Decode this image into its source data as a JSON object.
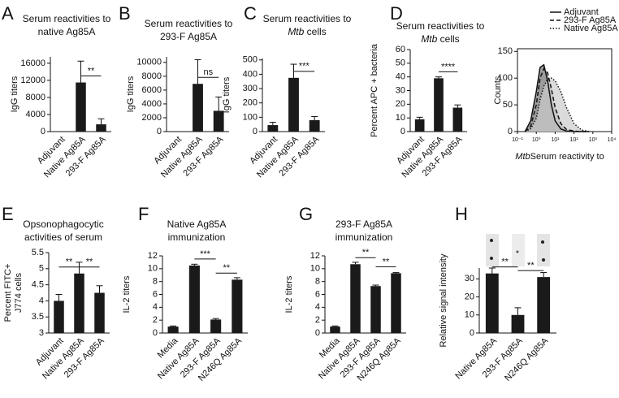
{
  "chart_data": [
    {
      "type": "bar",
      "panel": "A",
      "title": [
        "Serum reactivities to",
        "native Ag85A"
      ],
      "ylabel": "IgG titers",
      "categories": [
        "Adjuvant",
        "Native Ag85A",
        "293-F Ag85A"
      ],
      "values": [
        0,
        11500,
        1700
      ],
      "errors": [
        0,
        5000,
        1300
      ],
      "ylim": [
        0,
        17500
      ],
      "yticks": [
        0,
        4000,
        8000,
        12000,
        16000
      ],
      "color": "#1a1a1a",
      "significance": [
        {
          "between": [
            1,
            2
          ],
          "label": "**"
        }
      ]
    },
    {
      "type": "bar",
      "panel": "B",
      "title": [
        "Serum reactivities to",
        "293-F Ag85A"
      ],
      "ylabel": "IgG titers",
      "categories": [
        "Adjuvant",
        "Native Ag85A",
        "293-F Ag85A"
      ],
      "values": [
        0,
        6900,
        3000
      ],
      "errors": [
        0,
        3500,
        2000
      ],
      "ylim": [
        0,
        10800
      ],
      "yticks": [
        0,
        2000,
        4000,
        6000,
        8000,
        10000
      ],
      "color": "#1a1a1a",
      "significance": [
        {
          "between": [
            1,
            2
          ],
          "label": "ns"
        }
      ]
    },
    {
      "type": "bar",
      "panel": "C",
      "title": [
        "Serum reactivities to",
        {
          "italic": "Mtb",
          "text": " cells"
        }
      ],
      "ylabel": "IgG titers",
      "categories": [
        "Adjuvant",
        "Native Ag85A",
        "293-F Ag85A"
      ],
      "values": [
        45,
        375,
        80
      ],
      "errors": [
        20,
        95,
        25
      ],
      "ylim": [
        0,
        510
      ],
      "yticks": [
        0,
        100,
        200,
        300,
        400,
        500
      ],
      "color": "#1a1a1a",
      "significance": [
        {
          "between": [
            1,
            2
          ],
          "label": "***"
        }
      ]
    },
    {
      "type": "bar",
      "panel": "D",
      "title": [
        "Serum reactivities to",
        {
          "italic": "Mtb",
          "text": " cells"
        }
      ],
      "ylabel": "Percent APC + bacteria",
      "categories": [
        "Adjuvant",
        "Native Ag85A",
        "293-F Ag85A"
      ],
      "values": [
        9,
        39,
        17.5
      ],
      "errors": [
        1.5,
        1,
        2
      ],
      "ylim": [
        0,
        60
      ],
      "yticks": [
        0,
        10,
        20,
        30,
        40,
        50,
        60
      ],
      "color": "#1a1a1a",
      "significance": [
        {
          "between": [
            1,
            2
          ],
          "label": "****"
        }
      ]
    },
    {
      "type": "line",
      "ylabel": "Counts",
      "xlabel": {
        "text": "Serum reactivity to ",
        "italic": "Mtb"
      },
      "x": [
        -0.6,
        -0.3,
        0,
        0.2,
        0.4,
        0.6,
        0.8,
        1.0,
        1.3,
        1.6,
        2.0,
        2.4,
        2.8
      ],
      "ylim": [
        0,
        155
      ],
      "yticks": [
        0,
        50,
        100,
        150
      ],
      "xlim": [
        -1,
        4
      ],
      "xticks": [
        {
          "value": -1,
          "label": "10⁻¹"
        },
        {
          "value": 0,
          "label": "10⁰"
        },
        {
          "value": 1,
          "label": "10¹"
        },
        {
          "value": 2,
          "label": "10²"
        },
        {
          "value": 3,
          "label": "10³"
        },
        {
          "value": 4,
          "label": "10⁴"
        }
      ],
      "legend": "top-right",
      "series": [
        {
          "name": "Adjuvant",
          "color": "#111",
          "fill": "#777",
          "dash": "solid",
          "values": [
            0,
            20,
            75,
            120,
            125,
            95,
            50,
            20,
            5,
            1,
            0,
            0,
            0
          ]
        },
        {
          "name": "293-F Ag85A",
          "color": "#111",
          "fill": "#999",
          "dash": "dashed",
          "values": [
            0,
            10,
            50,
            100,
            118,
            110,
            80,
            45,
            15,
            4,
            1,
            0,
            0
          ]
        },
        {
          "name": "Native Ag85A",
          "color": "#111",
          "fill": "#ccc",
          "dash": "dotted",
          "values": [
            0,
            5,
            25,
            60,
            85,
            98,
            100,
            95,
            75,
            45,
            15,
            3,
            0
          ]
        }
      ]
    },
    {
      "type": "bar",
      "panel": "E",
      "title": [
        "Opsonophagocytic",
        "activities of serum"
      ],
      "ylabel": [
        "Percent FITC+",
        "J774 cells"
      ],
      "categories": [
        "Adjuvant",
        "Native Ag85A",
        "293-F Ag85A"
      ],
      "values": [
        4.0,
        4.85,
        4.25
      ],
      "errors": [
        0.2,
        0.35,
        0.22
      ],
      "ylim": [
        3,
        5.5
      ],
      "yticks": [
        3,
        3.5,
        4,
        4.5,
        5,
        5.5
      ],
      "color": "#1a1a1a",
      "significance": [
        {
          "between": [
            0,
            1
          ],
          "label": "**"
        },
        {
          "between": [
            1,
            2
          ],
          "label": "**"
        }
      ]
    },
    {
      "type": "bar",
      "panel": "F",
      "title": [
        "Native Ag85A",
        "immunization"
      ],
      "ylabel": "IL-2 titers",
      "categories": [
        "Media",
        "Native Ag85A",
        "293-F Ag85A",
        "N246Q Ag85A"
      ],
      "values": [
        1,
        10.5,
        2.1,
        8.3
      ],
      "errors": [
        0.1,
        0.2,
        0.15,
        0.3
      ],
      "ylim": [
        0,
        12
      ],
      "yticks": [
        0,
        2,
        4,
        6,
        8,
        10,
        12
      ],
      "color": "#1a1a1a",
      "significance": [
        {
          "between": [
            1,
            2
          ],
          "label": "***"
        },
        {
          "between": [
            2,
            3
          ],
          "label": "**"
        }
      ]
    },
    {
      "type": "bar",
      "panel": "G",
      "title": [
        "293-F Ag85A",
        "immunization"
      ],
      "ylabel": "IL-2 titers",
      "categories": [
        "Media",
        "Native Ag85A",
        "293-F Ag85A",
        "N246Q Ag85A"
      ],
      "values": [
        1,
        10.7,
        7.3,
        9.3
      ],
      "errors": [
        0.1,
        0.3,
        0.15,
        0.1
      ],
      "ylim": [
        0,
        12
      ],
      "yticks": [
        0,
        2,
        4,
        6,
        8,
        10,
        12
      ],
      "color": "#1a1a1a",
      "significance": [
        {
          "between": [
            1,
            2
          ],
          "label": "**"
        },
        {
          "between": [
            2,
            3
          ],
          "label": "**"
        }
      ]
    },
    {
      "type": "bar",
      "panel": "H",
      "ylabel": "Relative signal intensity",
      "categories": [
        "Native Ag85A",
        "293-F Ag85A",
        "N246Q Ag85A"
      ],
      "values": [
        33,
        10,
        31
      ],
      "errors": [
        3,
        4,
        2.5
      ],
      "ylim": [
        0,
        36
      ],
      "yticks": [
        0,
        10,
        20,
        30
      ],
      "color": "#1a1a1a",
      "significance": [
        {
          "between": [
            0,
            1
          ],
          "label": "**"
        },
        {
          "between": [
            1,
            2
          ],
          "label": "**"
        }
      ]
    }
  ]
}
